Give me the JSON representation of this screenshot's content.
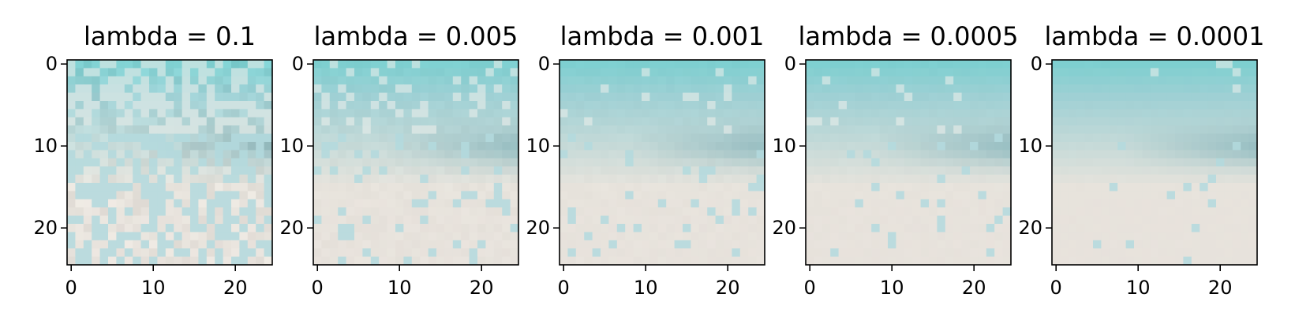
{
  "chart_data": [
    {
      "type": "heatmap",
      "title": "lambda = 0.1",
      "x_ticks": [
        "0",
        "10",
        "20"
      ],
      "y_ticks": [
        "0",
        "10",
        "20"
      ],
      "xlim": [
        -0.5,
        24.5
      ],
      "ylim": [
        24.5,
        -0.5
      ],
      "grid": false,
      "noise": 0.95
    },
    {
      "type": "heatmap",
      "title": "lambda = 0.005",
      "x_ticks": [
        "0",
        "10",
        "20"
      ],
      "y_ticks": [
        "0",
        "10",
        "20"
      ],
      "xlim": [
        -0.5,
        24.5
      ],
      "ylim": [
        24.5,
        -0.5
      ],
      "grid": false,
      "noise": 0.3
    },
    {
      "type": "heatmap",
      "title": "lambda = 0.001",
      "x_ticks": [
        "0",
        "10",
        "20"
      ],
      "y_ticks": [
        "0",
        "10",
        "20"
      ],
      "xlim": [
        -0.5,
        24.5
      ],
      "ylim": [
        24.5,
        -0.5
      ],
      "grid": false,
      "noise": 0.18
    },
    {
      "type": "heatmap",
      "title": "lambda = 0.0005",
      "x_ticks": [
        "0",
        "10",
        "20"
      ],
      "y_ticks": [
        "0",
        "10",
        "20"
      ],
      "xlim": [
        -0.5,
        24.5
      ],
      "ylim": [
        24.5,
        -0.5
      ],
      "grid": false,
      "noise": 0.12
    },
    {
      "type": "heatmap",
      "title": "lambda = 0.0001",
      "x_ticks": [
        "0",
        "10",
        "20"
      ],
      "y_ticks": [
        "0",
        "10",
        "20"
      ],
      "xlim": [
        -0.5,
        24.5
      ],
      "ylim": [
        24.5,
        -0.5
      ],
      "grid": false,
      "noise": 0.06
    }
  ],
  "colors": {
    "sky_top": "#7ecfd0",
    "sky_mid": "#9fd0d4",
    "shadow": "#8fb9be",
    "sand": "#e7e3dc",
    "sand_pink": "#e9dfdc",
    "noise_teal": "#b3dade",
    "axis": "#000000"
  }
}
